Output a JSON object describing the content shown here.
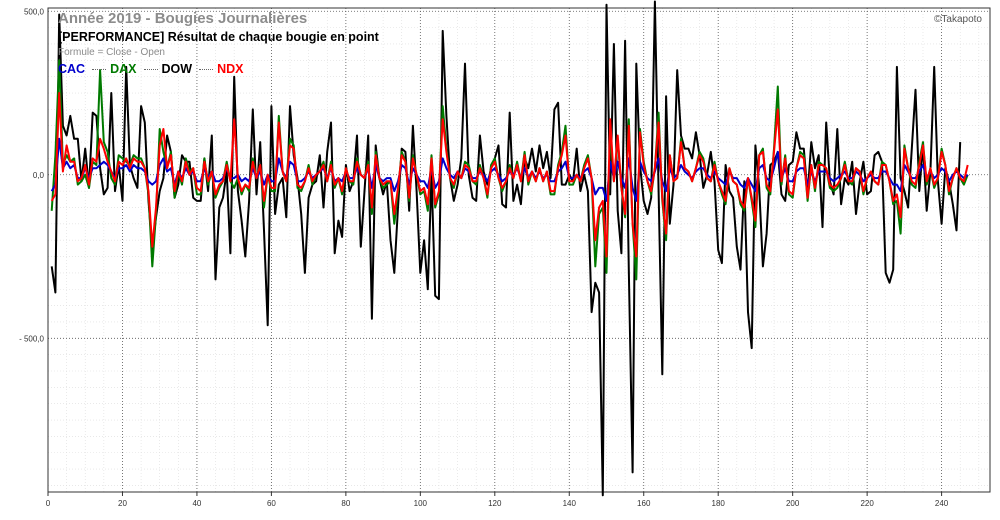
{
  "chart_data": {
    "type": "line",
    "title": "Année 2019 - Bougies Journalières",
    "subtitle": "[PERFORMANCE] Résultat de chaque bougie en point",
    "formula": "Formule = Close - Open",
    "brand": "©Takapoto",
    "xlim": [
      0,
      253
    ],
    "ylim": [
      -970,
      510
    ],
    "x_ticks": [
      0,
      20,
      40,
      60,
      80,
      100,
      120,
      140,
      160,
      180,
      200,
      220,
      240
    ],
    "y_ticks": [
      {
        "value": 500,
        "label": "500,0"
      },
      {
        "value": 0,
        "label": "0,0"
      },
      {
        "value": -500,
        "label": "- 500,0"
      }
    ],
    "grid": true,
    "legend_position": "top-left",
    "series": [
      {
        "name": "DOW",
        "color": "#000000",
        "values": [
          -280,
          -360,
          490,
          150,
          120,
          180,
          110,
          110,
          -20,
          80,
          -40,
          190,
          180,
          20,
          -60,
          -40,
          250,
          -50,
          30,
          -80,
          330,
          30,
          -10,
          -40,
          210,
          160,
          -80,
          -230,
          -130,
          -50,
          -10,
          120,
          70,
          -70,
          -30,
          60,
          40,
          40,
          -70,
          -80,
          -80,
          50,
          -50,
          120,
          -320,
          -100,
          -70,
          10,
          -240,
          300,
          -50,
          -140,
          -250,
          -80,
          200,
          -60,
          100,
          -170,
          -460,
          210,
          -120,
          -30,
          -10,
          -130,
          210,
          60,
          -10,
          -120,
          -300,
          -70,
          -30,
          -20,
          60,
          -100,
          70,
          160,
          -240,
          -140,
          -190,
          30,
          -50,
          -20,
          120,
          -220,
          -50,
          120,
          -440,
          90,
          -10,
          -60,
          -20,
          -200,
          -300,
          -100,
          80,
          70,
          -110,
          150,
          -50,
          -300,
          -200,
          -350,
          0,
          -370,
          -380,
          440,
          180,
          -10,
          -80,
          -30,
          50,
          340,
          0,
          -70,
          -80,
          120,
          10,
          -30,
          20,
          50,
          90,
          -90,
          -100,
          190,
          -80,
          -30,
          -90,
          50,
          20,
          80,
          10,
          90,
          20,
          70,
          -10,
          200,
          220,
          -30,
          -30,
          0,
          -20,
          80,
          -50,
          0,
          -50,
          -420,
          -330,
          -360,
          -980,
          520,
          -60,
          400,
          -110,
          -240,
          410,
          -290,
          -910,
          340,
          30,
          -80,
          -120,
          -70,
          530,
          -50,
          -610,
          240,
          -150,
          -30,
          320,
          120,
          80,
          80,
          50,
          130,
          60,
          -40,
          0,
          70,
          -20,
          -230,
          -270,
          30,
          -50,
          -70,
          -220,
          -290,
          -20,
          -420,
          -530,
          90,
          -40,
          -280,
          -180,
          30,
          40,
          70,
          -60,
          -80,
          30,
          40,
          130,
          80,
          80,
          -60,
          100,
          20,
          60,
          -160,
          160,
          -20,
          -60,
          140,
          -90,
          -10,
          -30,
          40,
          -120,
          -20,
          40,
          -60,
          -50,
          60,
          70,
          40,
          -300,
          -330,
          -290,
          330,
          -10,
          -50,
          -100,
          80,
          260,
          -50,
          90,
          -110,
          10,
          330,
          -20,
          -150,
          20,
          -20,
          -90,
          -170,
          100
        ]
      },
      {
        "name": "DAX",
        "color": "#007a00",
        "values": [
          -110,
          60,
          350,
          30,
          60,
          40,
          50,
          -30,
          -20,
          0,
          -40,
          40,
          30,
          320,
          100,
          70,
          -10,
          -30,
          60,
          50,
          40,
          30,
          60,
          50,
          50,
          20,
          -60,
          -280,
          -120,
          140,
          70,
          20,
          70,
          -70,
          10,
          -30,
          50,
          10,
          20,
          -60,
          -60,
          50,
          -30,
          10,
          -70,
          -40,
          -20,
          40,
          -20,
          -40,
          -10,
          -60,
          -30,
          -50,
          50,
          -10,
          30,
          -100,
          0,
          -50,
          -50,
          180,
          10,
          -20,
          110,
          90,
          -40,
          -50,
          -20,
          30,
          -30,
          0,
          10,
          40,
          -20,
          40,
          -40,
          -10,
          -60,
          20,
          -20,
          -30,
          50,
          0,
          -10,
          40,
          -120,
          70,
          -10,
          -40,
          -30,
          -20,
          -150,
          -50,
          70,
          40,
          -80,
          60,
          0,
          -60,
          -50,
          -110,
          60,
          -100,
          -60,
          210,
          80,
          -10,
          -40,
          10,
          -10,
          40,
          30,
          -20,
          -30,
          30,
          -10,
          -70,
          30,
          50,
          -10,
          -50,
          -20,
          30,
          -10,
          40,
          -20,
          70,
          -30,
          10,
          -20,
          20,
          -20,
          10,
          -60,
          -60,
          30,
          70,
          150,
          -30,
          -30,
          0,
          -20,
          30,
          60,
          -10,
          -280,
          -120,
          -100,
          -300,
          130,
          -20,
          110,
          -40,
          -130,
          170,
          -150,
          -320,
          140,
          40,
          -20,
          -60,
          20,
          190,
          -80,
          -200,
          60,
          -20,
          -10,
          110,
          20,
          10,
          -20,
          20,
          70,
          50,
          -10,
          -20,
          40,
          -20,
          -60,
          -90,
          20,
          -20,
          -30,
          -90,
          -110,
          -10,
          -80,
          -160,
          60,
          80,
          -40,
          -60,
          80,
          270,
          -30,
          60,
          -60,
          -70,
          20,
          70,
          60,
          -80,
          30,
          -50,
          40,
          30,
          20,
          -40,
          -50,
          -40,
          -10,
          40,
          -20,
          -30,
          20,
          10,
          -60,
          -10,
          10,
          -20,
          -30,
          40,
          30,
          -20,
          -90,
          -80,
          -180,
          90,
          20,
          -30,
          -40,
          40,
          100,
          -30,
          20,
          -40,
          -10,
          80,
          30,
          -60,
          -10,
          20,
          -10,
          -30,
          0
        ]
      },
      {
        "name": "CAC",
        "color": "#0000cc",
        "values": [
          -50,
          -30,
          110,
          20,
          40,
          20,
          30,
          -10,
          -10,
          20,
          -10,
          20,
          20,
          30,
          40,
          30,
          10,
          -10,
          20,
          20,
          30,
          10,
          30,
          20,
          20,
          10,
          -20,
          -30,
          -20,
          30,
          50,
          10,
          20,
          -30,
          10,
          -10,
          20,
          0,
          10,
          -20,
          -20,
          20,
          -10,
          10,
          -20,
          -20,
          -10,
          20,
          -10,
          -10,
          0,
          -20,
          -10,
          -20,
          20,
          -10,
          10,
          -30,
          0,
          -20,
          -20,
          50,
          10,
          -10,
          40,
          30,
          -20,
          -20,
          -10,
          10,
          -10,
          0,
          10,
          20,
          -10,
          20,
          -20,
          -10,
          -20,
          10,
          -10,
          -10,
          20,
          0,
          -10,
          20,
          -40,
          30,
          -10,
          -20,
          -10,
          -10,
          -50,
          -20,
          30,
          20,
          -30,
          20,
          0,
          -20,
          -20,
          -40,
          20,
          -40,
          -20,
          50,
          20,
          0,
          -10,
          10,
          -10,
          20,
          10,
          -10,
          -10,
          10,
          0,
          -20,
          10,
          20,
          0,
          -20,
          -10,
          10,
          0,
          20,
          -10,
          20,
          -10,
          10,
          -10,
          10,
          -10,
          0,
          -20,
          -20,
          10,
          20,
          40,
          -10,
          -10,
          0,
          -10,
          10,
          20,
          -10,
          -60,
          -40,
          -40,
          -80,
          40,
          -10,
          40,
          -10,
          -40,
          50,
          -40,
          -80,
          40,
          10,
          -10,
          -20,
          10,
          50,
          -20,
          -50,
          20,
          -10,
          0,
          30,
          10,
          0,
          -10,
          10,
          20,
          20,
          0,
          -10,
          10,
          -10,
          -20,
          -30,
          10,
          -10,
          -10,
          -30,
          -40,
          -10,
          -30,
          -50,
          20,
          30,
          -10,
          -20,
          20,
          70,
          -10,
          20,
          -20,
          -20,
          10,
          20,
          20,
          -30,
          10,
          -20,
          10,
          10,
          10,
          -10,
          -20,
          -10,
          0,
          10,
          -10,
          -10,
          10,
          0,
          -20,
          -10,
          0,
          -10,
          -10,
          10,
          10,
          -10,
          -30,
          -30,
          -50,
          30,
          10,
          -10,
          -10,
          10,
          30,
          -10,
          10,
          -10,
          0,
          20,
          10,
          -20,
          0,
          10,
          0,
          -10,
          0
        ]
      },
      {
        "name": "NDX",
        "color": "#ff0000",
        "values": [
          -80,
          -60,
          250,
          10,
          90,
          40,
          40,
          -20,
          -10,
          30,
          -30,
          50,
          40,
          110,
          80,
          40,
          10,
          -20,
          40,
          30,
          50,
          20,
          50,
          40,
          40,
          20,
          -50,
          -220,
          -100,
          90,
          140,
          20,
          60,
          -50,
          10,
          -20,
          40,
          0,
          20,
          -40,
          -50,
          40,
          -20,
          10,
          -60,
          -30,
          -20,
          30,
          -20,
          170,
          -10,
          -50,
          -30,
          -40,
          40,
          -10,
          30,
          -80,
          0,
          -40,
          -40,
          160,
          10,
          -20,
          90,
          80,
          -30,
          -40,
          -20,
          20,
          -20,
          0,
          10,
          30,
          -20,
          30,
          -30,
          -10,
          -50,
          20,
          -20,
          -20,
          40,
          0,
          -10,
          30,
          -100,
          60,
          -10,
          -30,
          -20,
          -20,
          -120,
          -40,
          60,
          40,
          -70,
          50,
          0,
          -50,
          -40,
          -90,
          50,
          -90,
          -50,
          170,
          70,
          -10,
          -30,
          10,
          -10,
          30,
          20,
          -20,
          -20,
          20,
          -10,
          -60,
          20,
          40,
          -10,
          -40,
          -20,
          20,
          -10,
          30,
          -20,
          60,
          -20,
          10,
          -20,
          20,
          -20,
          10,
          -50,
          -50,
          20,
          60,
          120,
          -20,
          -20,
          0,
          -20,
          20,
          50,
          -10,
          -200,
          -100,
          -80,
          -250,
          170,
          -20,
          120,
          -40,
          -120,
          150,
          -150,
          -250,
          130,
          30,
          -20,
          -50,
          20,
          160,
          -70,
          -180,
          60,
          -20,
          -10,
          100,
          20,
          10,
          -20,
          20,
          60,
          40,
          -10,
          -20,
          30,
          -20,
          -50,
          -80,
          20,
          -20,
          -30,
          -80,
          -100,
          -10,
          -70,
          -140,
          60,
          70,
          -30,
          -50,
          70,
          200,
          -20,
          50,
          -50,
          -60,
          20,
          60,
          50,
          -70,
          30,
          -40,
          30,
          30,
          20,
          -30,
          -40,
          -30,
          -10,
          30,
          -20,
          -20,
          20,
          10,
          -50,
          -10,
          10,
          -20,
          -30,
          30,
          30,
          -20,
          -80,
          -60,
          -130,
          80,
          20,
          -20,
          -30,
          30,
          90,
          -20,
          20,
          -30,
          -10,
          70,
          30,
          -50,
          -10,
          20,
          -10,
          -20,
          30
        ]
      }
    ]
  }
}
